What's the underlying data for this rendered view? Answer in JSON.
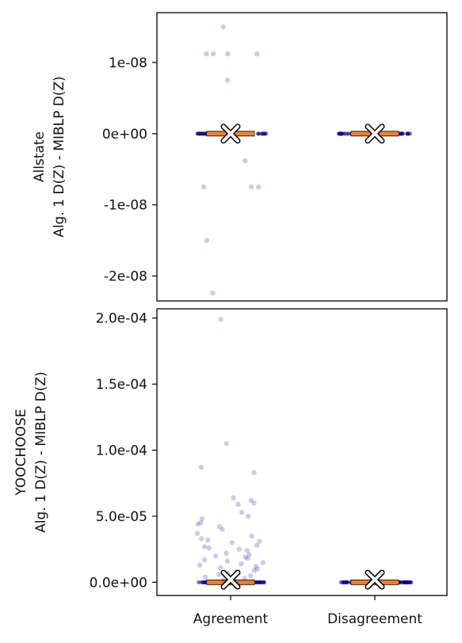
{
  "chart_data": [
    {
      "type": "box-strip",
      "dataset": "Allstate",
      "ylabel_lines": [
        "Allstate",
        "Alg. 1 D(Z) - MIBLP D(Z)"
      ],
      "categories": [
        "Agreement",
        "Disagreement"
      ],
      "ylim": [
        -2.35e-08,
        1.7e-08
      ],
      "yticks": [
        1e-08,
        0,
        -1e-08,
        -2e-08
      ],
      "ytick_labels": [
        "1e-08",
        "0e+00",
        "-1e-08",
        "-2e-08"
      ],
      "points": [
        {
          "category": "Agreement",
          "values": [
            1.12e-08,
            1.12e-08,
            1.12e-08,
            1.12e-08,
            1.5e-08,
            7.5e-09,
            -7.5e-09,
            -7.5e-09,
            -7.5e-09,
            -3.8e-09,
            -1.5e-08,
            -2.24e-08
          ]
        },
        {
          "category": "Disagreement",
          "values": []
        }
      ],
      "box": {
        "median": 0,
        "q1": 0,
        "q3": 0,
        "mean": 0
      }
    },
    {
      "type": "box-strip",
      "dataset": "YOOCHOOSE",
      "ylabel_lines": [
        "YOOCHOOSE",
        "Alg. 1 D(Z) - MIBLP D(Z)"
      ],
      "categories": [
        "Agreement",
        "Disagreement"
      ],
      "ylim": [
        -1e-05,
        0.000207
      ],
      "yticks": [
        0.0002,
        0.00015,
        0.0001,
        5e-05,
        0
      ],
      "ytick_labels": [
        "2.0e-04",
        "1.5e-04",
        "1.0e-04",
        "5.0e-05",
        "0.0e+00"
      ],
      "points": [
        {
          "category": "Agreement",
          "values": [
            0.000199,
            0.000105,
            8.7e-05,
            8.3e-05,
            6.4e-05,
            6.2e-05,
            6e-05,
            5.9e-05,
            5.3e-05,
            5e-05,
            4.8e-05,
            4.5e-05,
            4.4e-05,
            4.2e-05,
            4e-05,
            3.7e-05,
            3.5e-05,
            3.3e-05,
            3.2e-05,
            3.1e-05,
            3e-05,
            2.8e-05,
            2.7e-05,
            2.6e-05,
            2.5e-05,
            2.4e-05,
            2.2e-05,
            2.1e-05,
            2e-05,
            1.9e-05,
            1.8e-05,
            1.7e-05,
            1.6e-05,
            1.5e-05,
            1.4e-05,
            1.3e-05,
            1.2e-05,
            1.1e-05,
            1e-05,
            9e-06,
            8e-06,
            7e-06,
            6e-06,
            5e-06,
            4e-06,
            3e-06,
            2e-06
          ]
        },
        {
          "category": "Disagreement",
          "values": []
        }
      ],
      "box": {
        "median": 0,
        "q1": 0,
        "q3": 0,
        "mean": 2e-06
      }
    }
  ],
  "colors": {
    "points": "#00008b",
    "median": "#f28022",
    "mean_marker_fill": "#ffffff",
    "mean_marker_edge": "#000000"
  }
}
